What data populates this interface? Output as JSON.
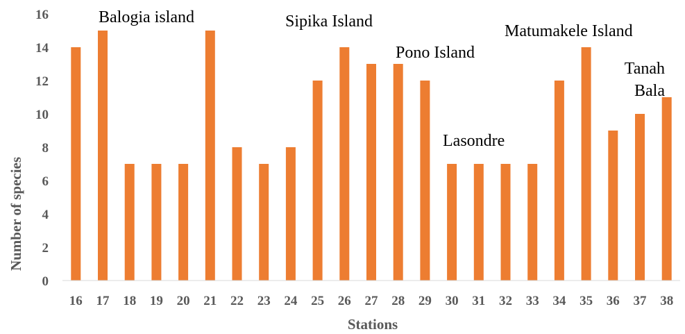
{
  "chart_data": {
    "type": "bar",
    "title": "",
    "xlabel": "Stations",
    "ylabel": "Number of species",
    "categories": [
      "16",
      "17",
      "18",
      "19",
      "20",
      "21",
      "22",
      "23",
      "24",
      "25",
      "26",
      "27",
      "28",
      "29",
      "30",
      "31",
      "32",
      "33",
      "34",
      "35",
      "36",
      "37",
      "38"
    ],
    "values": [
      14,
      15,
      7,
      7,
      7,
      15,
      8,
      7,
      8,
      12,
      14,
      13,
      13,
      12,
      7,
      7,
      7,
      7,
      12,
      14,
      9,
      10,
      11
    ],
    "ylim": [
      0,
      16
    ],
    "yticks": [
      0,
      2,
      4,
      6,
      8,
      10,
      12,
      14,
      16
    ],
    "grid": false,
    "legend": "none",
    "bar_color": "#ED7D31",
    "annotations": [
      {
        "text": "Balogia island",
        "near": "17"
      },
      {
        "text": "Sipika Island",
        "near": "26"
      },
      {
        "text": "Pono Island",
        "near": "29"
      },
      {
        "text": "Lasondre",
        "near": "32"
      },
      {
        "text": "Matumakele Island",
        "near": "35"
      },
      {
        "text": "Tanah",
        "near": "38"
      },
      {
        "text": "Bala",
        "near": "38"
      }
    ]
  }
}
